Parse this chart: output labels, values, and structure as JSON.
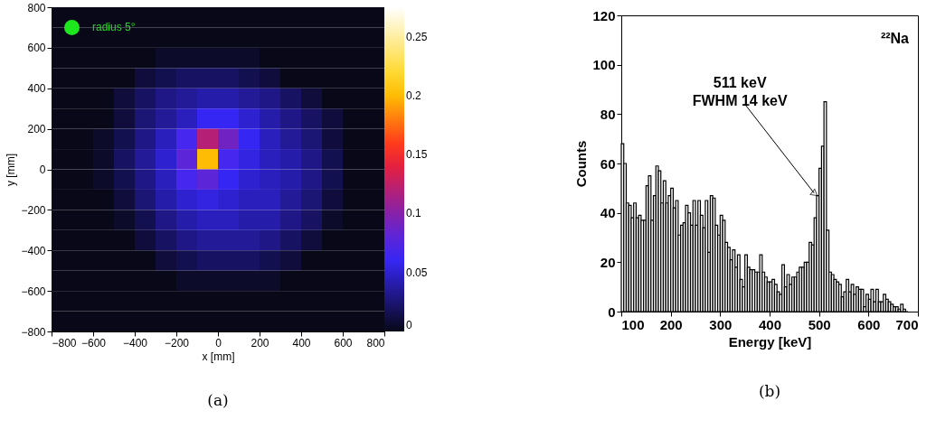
{
  "chart_data": [
    {
      "type": "heatmap",
      "title": "(a)",
      "xlabel": "x [mm]",
      "ylabel": "y [mm]",
      "xlim": [
        -800,
        800
      ],
      "ylim": [
        -800,
        800
      ],
      "xticks": [
        -800,
        -600,
        -400,
        -200,
        0,
        200,
        400,
        600,
        800
      ],
      "yticks": [
        -800,
        -600,
        -400,
        -200,
        0,
        200,
        400,
        600,
        800
      ],
      "clim": [
        0,
        0.275
      ],
      "cticks": [
        0,
        0.05,
        0.1,
        0.15,
        0.2,
        0.25
      ],
      "annotations": [
        "radius 5°"
      ],
      "cells": [
        [
          0,
          0,
          0,
          0,
          0,
          0,
          0,
          0,
          0,
          0,
          0,
          0,
          0,
          0,
          0,
          0
        ],
        [
          0,
          0,
          0,
          0,
          0,
          0,
          0,
          0,
          0,
          0,
          0,
          0,
          0,
          0,
          0,
          0
        ],
        [
          0,
          0,
          0,
          0,
          0,
          0.005,
          0.005,
          0.005,
          0.005,
          0.005,
          0,
          0,
          0,
          0,
          0,
          0
        ],
        [
          0,
          0,
          0,
          0,
          0.01,
          0.015,
          0.02,
          0.02,
          0.02,
          0.015,
          0.01,
          0,
          0,
          0,
          0,
          0
        ],
        [
          0,
          0,
          0,
          0.01,
          0.02,
          0.03,
          0.035,
          0.04,
          0.04,
          0.035,
          0.03,
          0.02,
          0.01,
          0,
          0,
          0
        ],
        [
          0,
          0,
          0,
          0.01,
          0.025,
          0.035,
          0.045,
          0.06,
          0.06,
          0.05,
          0.04,
          0.03,
          0.02,
          0.01,
          0,
          0
        ],
        [
          0,
          0,
          0.005,
          0.015,
          0.03,
          0.045,
          0.07,
          0.12,
          0.09,
          0.06,
          0.045,
          0.035,
          0.025,
          0.01,
          0,
          0
        ],
        [
          0,
          0,
          0.005,
          0.02,
          0.035,
          0.05,
          0.08,
          0.2,
          0.07,
          0.055,
          0.045,
          0.04,
          0.03,
          0.015,
          0,
          0
        ],
        [
          0,
          0,
          0.005,
          0.015,
          0.03,
          0.045,
          0.07,
          0.08,
          0.06,
          0.05,
          0.045,
          0.04,
          0.03,
          0.015,
          0,
          0
        ],
        [
          0,
          0,
          0,
          0.01,
          0.025,
          0.04,
          0.05,
          0.055,
          0.05,
          0.045,
          0.045,
          0.035,
          0.025,
          0.01,
          0,
          0
        ],
        [
          0,
          0,
          0,
          0.005,
          0.015,
          0.03,
          0.04,
          0.045,
          0.045,
          0.04,
          0.04,
          0.03,
          0.02,
          0.005,
          0,
          0
        ],
        [
          0,
          0,
          0,
          0,
          0.01,
          0.02,
          0.03,
          0.035,
          0.035,
          0.035,
          0.03,
          0.02,
          0.01,
          0,
          0,
          0
        ],
        [
          0,
          0,
          0,
          0,
          0,
          0.01,
          0.015,
          0.02,
          0.02,
          0.02,
          0.015,
          0.01,
          0,
          0,
          0,
          0
        ],
        [
          0,
          0,
          0,
          0,
          0,
          0,
          0.005,
          0.005,
          0.005,
          0.005,
          0.005,
          0,
          0,
          0,
          0,
          0
        ],
        [
          0,
          0,
          0,
          0,
          0,
          0,
          0,
          0,
          0,
          0,
          0,
          0,
          0,
          0,
          0,
          0
        ],
        [
          0,
          0,
          0,
          0,
          0,
          0,
          0,
          0,
          0,
          0,
          0,
          0,
          0,
          0,
          0,
          0
        ]
      ]
    },
    {
      "type": "histogram",
      "title": "(b)",
      "xlabel": "Energy [keV]",
      "ylabel": "Counts",
      "xlim": [
        100,
        700
      ],
      "ylim": [
        0,
        120
      ],
      "xticks": [
        100,
        200,
        300,
        400,
        500,
        600,
        700
      ],
      "yticks": [
        0,
        20,
        40,
        60,
        80,
        100,
        120
      ],
      "color": "#000000",
      "annotations": [
        "²²Na",
        {
          "text": "511 keV\nFWHM 14 keV",
          "x": 490,
          "y": 48
        }
      ],
      "bins": [
        100,
        105,
        110,
        115,
        120,
        125,
        130,
        135,
        140,
        145,
        150,
        155,
        160,
        165,
        170,
        175,
        180,
        185,
        190,
        195,
        200,
        205,
        210,
        215,
        220,
        225,
        230,
        235,
        240,
        245,
        250,
        255,
        260,
        265,
        270,
        275,
        280,
        285,
        290,
        295,
        300,
        305,
        310,
        315,
        320,
        325,
        330,
        335,
        340,
        345,
        350,
        355,
        360,
        365,
        370,
        375,
        380,
        385,
        390,
        395,
        400,
        405,
        410,
        415,
        420,
        425,
        430,
        435,
        440,
        445,
        450,
        455,
        460,
        465,
        470,
        475,
        480,
        485,
        490,
        495,
        500,
        505,
        510,
        515,
        520,
        525,
        530,
        535,
        540,
        545,
        550,
        555,
        560,
        565,
        570,
        575,
        580,
        585,
        590,
        595,
        600,
        605,
        610,
        615,
        620,
        625,
        630,
        635,
        640,
        645,
        650,
        655,
        660,
        665,
        670,
        675,
        680
      ],
      "values": [
        68,
        60,
        44,
        43,
        38,
        44,
        38,
        39,
        37,
        37,
        51,
        55,
        37,
        47,
        59,
        57,
        44,
        53,
        44,
        47,
        50,
        42,
        45,
        31,
        35,
        36,
        43,
        40,
        35,
        45,
        35,
        45,
        39,
        34,
        45,
        24,
        47,
        46,
        35,
        31,
        39,
        37,
        28,
        26,
        21,
        25,
        18,
        23,
        13,
        10,
        23,
        18,
        17,
        17,
        16,
        16,
        23,
        16,
        14,
        12,
        12,
        13,
        11,
        8,
        7,
        19,
        10,
        15,
        11,
        14,
        14,
        16,
        18,
        18,
        20,
        20,
        28,
        27,
        38,
        47,
        58,
        67,
        85,
        33,
        16,
        15,
        13,
        12,
        11,
        6,
        8,
        13,
        8,
        11,
        7,
        10,
        9,
        9,
        2,
        7,
        5,
        9,
        4,
        9,
        4,
        4,
        7,
        5,
        4,
        3,
        2,
        2,
        1,
        3,
        1,
        0
      ]
    }
  ]
}
